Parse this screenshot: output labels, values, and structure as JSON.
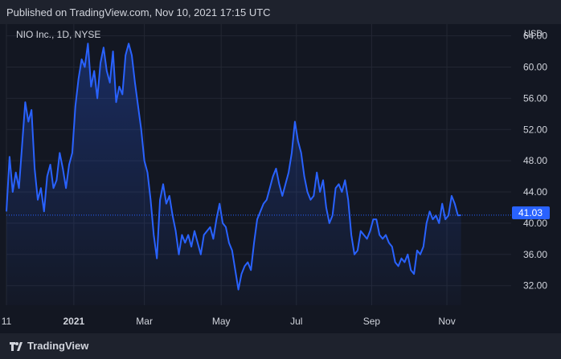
{
  "header": {
    "published": "Published on TradingView.com, Nov 10, 2021 17:15 UTC"
  },
  "symbol": {
    "label": "NIO Inc., 1D, NYSE"
  },
  "currency": "USD",
  "last_price": "41.03",
  "footer": {
    "brand": "TradingView"
  },
  "colors": {
    "background": "#131722",
    "line": "#2962ff",
    "price_badge": "#2962ff",
    "grid": "#232733"
  },
  "chart_data": {
    "type": "area",
    "title": "NIO Inc., 1D, NYSE",
    "ylabel": "USD",
    "ylim": [
      29.5,
      65.5
    ],
    "xlim": [
      0,
      322
    ],
    "y_ticks": [
      "32.00",
      "36.00",
      "40.00",
      "44.00",
      "48.00",
      "52.00",
      "56.00",
      "60.00",
      "64.00"
    ],
    "y_tick_values": [
      32,
      36,
      40,
      44,
      48,
      52,
      56,
      60,
      64
    ],
    "x_tick_labels": [
      "11",
      "2021",
      "Mar",
      "May",
      "Jul",
      "Sep",
      "Nov"
    ],
    "x_tick_values": [
      0,
      43,
      88,
      137,
      185,
      233,
      281
    ],
    "last_value": 41.03,
    "grid": true,
    "series": [
      {
        "x": [
          0,
          2,
          4,
          6,
          8,
          10,
          12,
          14,
          16,
          18,
          20,
          22,
          24,
          26,
          28,
          30,
          32,
          34,
          36,
          38,
          40,
          42,
          44,
          46,
          48,
          50,
          52,
          54,
          56,
          58,
          60,
          62,
          64,
          66,
          68,
          70,
          72,
          74,
          76,
          78,
          80,
          82,
          84,
          86,
          88,
          90,
          92,
          94,
          96,
          98,
          100,
          102,
          104,
          106,
          108,
          110,
          112,
          114,
          116,
          118,
          120,
          122,
          124,
          126,
          128,
          130,
          132,
          134,
          136,
          138,
          140,
          142,
          144,
          146,
          148,
          150,
          152,
          154,
          156,
          158,
          160,
          162,
          164,
          166,
          168,
          170,
          172,
          174,
          176,
          178,
          180,
          182,
          184,
          186,
          188,
          190,
          192,
          194,
          196,
          198,
          200,
          202,
          204,
          206,
          208,
          210,
          212,
          214,
          216,
          218,
          220,
          222,
          224,
          226,
          228,
          230,
          232,
          234,
          236,
          238,
          240,
          242,
          244,
          246,
          248,
          250,
          252,
          254,
          256,
          258,
          260,
          262,
          264,
          266,
          268,
          270,
          272,
          274,
          276,
          278,
          280,
          282,
          284,
          286,
          288,
          290
        ],
        "values": [
          41.5,
          48.5,
          44.0,
          46.5,
          44.5,
          50.0,
          55.5,
          53.0,
          54.5,
          47.0,
          43.0,
          44.5,
          41.5,
          46.0,
          47.5,
          44.5,
          45.5,
          49.0,
          47.0,
          44.5,
          47.5,
          49.0,
          55.0,
          58.5,
          61.0,
          60.0,
          63.0,
          57.5,
          59.5,
          56.0,
          60.5,
          62.5,
          59.5,
          58.0,
          62.0,
          55.5,
          57.5,
          56.5,
          61.5,
          63.0,
          61.5,
          58.0,
          55.0,
          52.0,
          48.0,
          46.5,
          43.0,
          38.5,
          35.5,
          43.0,
          45.0,
          42.5,
          43.5,
          41.0,
          39.0,
          36.0,
          38.5,
          37.5,
          38.5,
          37.0,
          39.0,
          37.5,
          36.0,
          38.5,
          39.0,
          39.5,
          38.0,
          40.5,
          42.5,
          40.0,
          39.5,
          37.5,
          36.5,
          34.0,
          31.5,
          33.5,
          34.5,
          35.0,
          34.0,
          37.5,
          40.5,
          41.5,
          42.5,
          43.0,
          44.5,
          46.0,
          47.0,
          45.0,
          43.5,
          45.0,
          46.5,
          49.0,
          53.0,
          50.5,
          49.0,
          46.0,
          44.0,
          43.0,
          43.5,
          46.5,
          44.0,
          45.5,
          42.0,
          40.0,
          41.0,
          44.5,
          45.0,
          44.0,
          45.5,
          43.0,
          38.5,
          36.0,
          36.5,
          39.0,
          38.5,
          38.0,
          39.0,
          40.5,
          40.5,
          38.5,
          38.0,
          38.5,
          37.5,
          37.0,
          35.0,
          34.5,
          35.5,
          35.0,
          36.0,
          34.0,
          33.5,
          36.5,
          36.0,
          37.0,
          40.0,
          41.5,
          40.5,
          41.0,
          40.0,
          42.5,
          40.5,
          41.0,
          43.5,
          42.5,
          41.0,
          41.03
        ]
      }
    ]
  }
}
